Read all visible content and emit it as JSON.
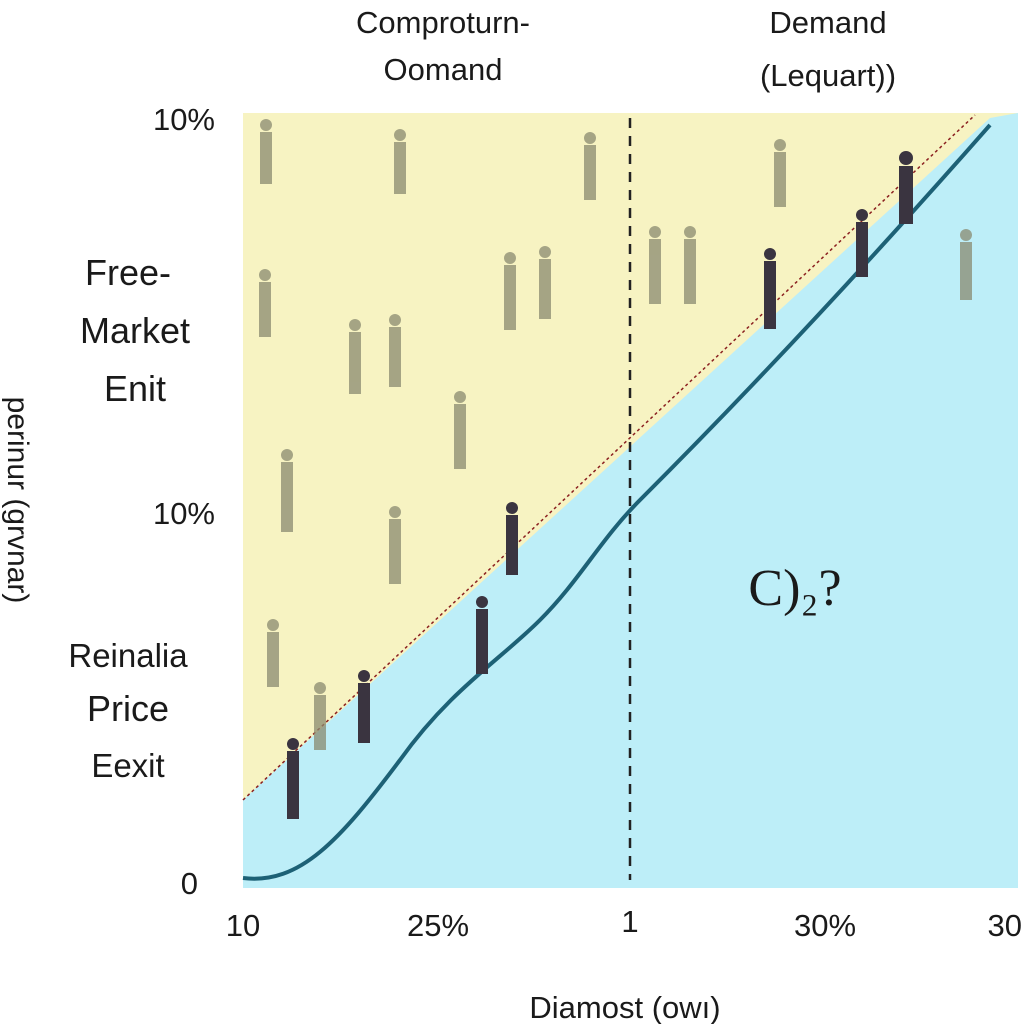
{
  "header": {
    "left": [
      "Comproturn-",
      "Oomand"
    ],
    "right": [
      "Demand",
      "(Lequart))"
    ]
  },
  "y_axis": {
    "label": "perinur (grvnar)",
    "ticks": [
      "10%",
      "10%",
      "0"
    ]
  },
  "x_axis": {
    "label": "Diamost (owı)",
    "ticks": [
      "10",
      "25%",
      "1",
      "30%",
      "30"
    ]
  },
  "regions": {
    "upper": [
      "Free-",
      "Market",
      "Enit"
    ],
    "lower": [
      "Reinalia",
      "Price",
      "Eexit"
    ]
  },
  "annotation": "C)₂?"
}
